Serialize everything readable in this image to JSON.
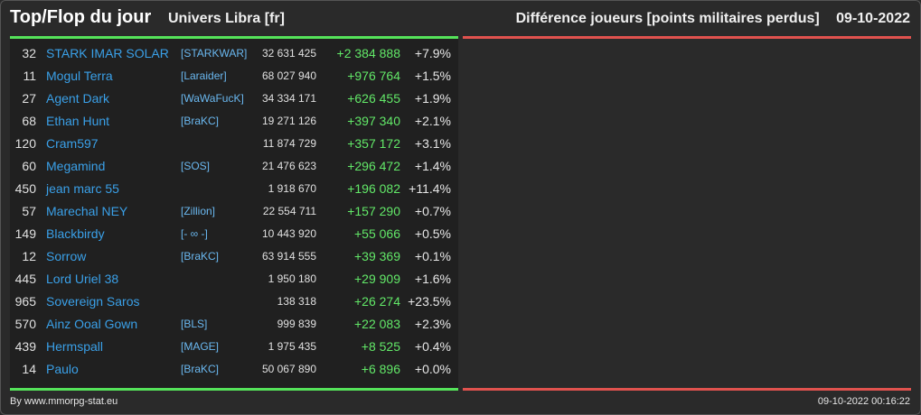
{
  "header": {
    "title": "Top/Flop du jour",
    "universe": "Univers Libra [fr]",
    "subtitle": "Différence joueurs [points militaires perdus]",
    "date": "09-10-2022"
  },
  "colors": {
    "top_bar": "#55e35a",
    "flop_bar": "#e0524e",
    "player_link": "#3aa0e8",
    "gain": "#62e868"
  },
  "top_rows": [
    {
      "rank": "32",
      "name": "STARK IMAR SOLAR",
      "alliance": "[STARKWAR]",
      "points": "32 631 425",
      "diff": "+2 384 888",
      "pct": "+7.9%"
    },
    {
      "rank": "11",
      "name": "Mogul Terra",
      "alliance": "[Laraider]",
      "points": "68 027 940",
      "diff": "+976 764",
      "pct": "+1.5%"
    },
    {
      "rank": "27",
      "name": "Agent Dark",
      "alliance": "[WaWaFucK]",
      "points": "34 334 171",
      "diff": "+626 455",
      "pct": "+1.9%"
    },
    {
      "rank": "68",
      "name": "Ethan Hunt",
      "alliance": "[BraKC]",
      "points": "19 271 126",
      "diff": "+397 340",
      "pct": "+2.1%"
    },
    {
      "rank": "120",
      "name": "Cram597",
      "alliance": "",
      "points": "11 874 729",
      "diff": "+357 172",
      "pct": "+3.1%"
    },
    {
      "rank": "60",
      "name": "Megamind",
      "alliance": "[SOS]",
      "points": "21 476 623",
      "diff": "+296 472",
      "pct": "+1.4%"
    },
    {
      "rank": "450",
      "name": "jean marc 55",
      "alliance": "",
      "points": "1 918 670",
      "diff": "+196 082",
      "pct": "+11.4%"
    },
    {
      "rank": "57",
      "name": "Marechal NEY",
      "alliance": "[Zillion]",
      "points": "22 554 711",
      "diff": "+157 290",
      "pct": "+0.7%"
    },
    {
      "rank": "149",
      "name": "Blackbirdy",
      "alliance": "[- ∞ -]",
      "points": "10 443 920",
      "diff": "+55 066",
      "pct": "+0.5%"
    },
    {
      "rank": "12",
      "name": "Sorrow",
      "alliance": "[BraKC]",
      "points": "63 914 555",
      "diff": "+39 369",
      "pct": "+0.1%"
    },
    {
      "rank": "445",
      "name": "Lord Uriel 38",
      "alliance": "",
      "points": "1 950 180",
      "diff": "+29 909",
      "pct": "+1.6%"
    },
    {
      "rank": "965",
      "name": "Sovereign Saros",
      "alliance": "",
      "points": "138 318",
      "diff": "+26 274",
      "pct": "+23.5%"
    },
    {
      "rank": "570",
      "name": "Ainz Ooal Gown",
      "alliance": "[BLS]",
      "points": "999 839",
      "diff": "+22 083",
      "pct": "+2.3%"
    },
    {
      "rank": "439",
      "name": "Hermspall",
      "alliance": "[MAGE]",
      "points": "1 975 435",
      "diff": "+8 525",
      "pct": "+0.4%"
    },
    {
      "rank": "14",
      "name": "Paulo",
      "alliance": "[BraKC]",
      "points": "50 067 890",
      "diff": "+6 896",
      "pct": "+0.0%"
    }
  ],
  "footer": {
    "credit": "By www.mmorpg-stat.eu",
    "timestamp": "09-10-2022 00:16:22"
  }
}
